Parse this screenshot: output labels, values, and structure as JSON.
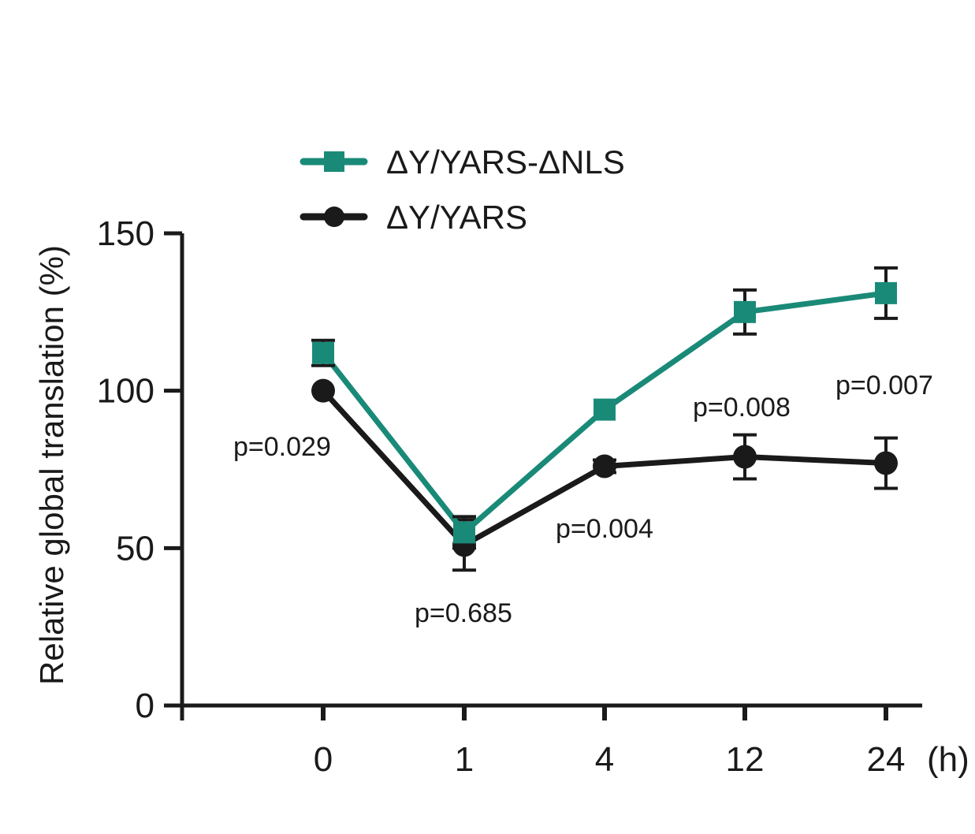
{
  "chart_data": {
    "type": "line",
    "categories": [
      "0",
      "1",
      "4",
      "12",
      "24"
    ],
    "x_unit_label": "(h)",
    "ylabel": "Relative global translation (%)",
    "ylim": [
      0,
      150
    ],
    "yticks": [
      "0",
      "50",
      "100",
      "150"
    ],
    "grid": false,
    "legend_position": "top",
    "series": [
      {
        "name": "ΔY/YARS-ΔNLS",
        "color": "#1a8a78",
        "marker": "square",
        "values": [
          112,
          55,
          94,
          125,
          131
        ],
        "errors": [
          4,
          5,
          0,
          7,
          8
        ]
      },
      {
        "name": "ΔY/YARS",
        "color": "#1a1a1a",
        "marker": "circle",
        "values": [
          100,
          51,
          76,
          79,
          77
        ],
        "errors": [
          0,
          8,
          2,
          7,
          8
        ]
      }
    ],
    "annotations": [
      "p=0.029",
      "p=0.685",
      "p=0.004",
      "p=0.008",
      "p=0.007"
    ]
  }
}
